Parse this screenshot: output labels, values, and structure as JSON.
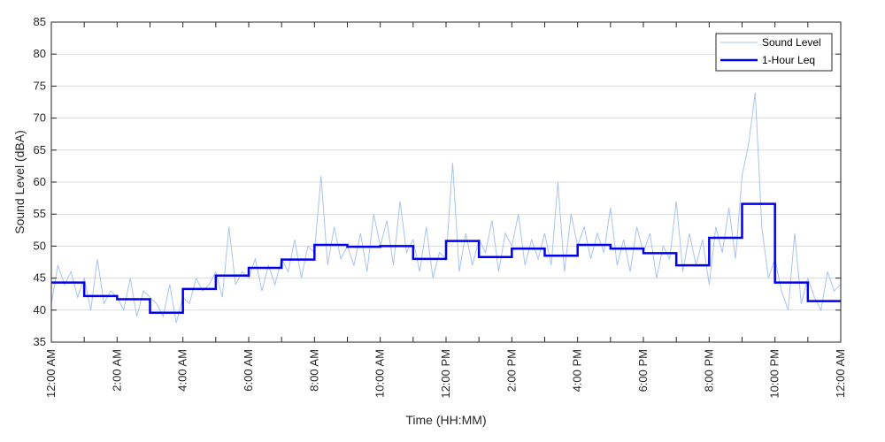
{
  "chart_data": {
    "type": "line",
    "title": "",
    "xlabel": "Time (HH:MM)",
    "ylabel": "Sound Level (dBA)",
    "xlim_hours": [
      0,
      24
    ],
    "ylim": [
      35,
      85
    ],
    "y_ticks": [
      35,
      40,
      45,
      50,
      55,
      60,
      65,
      70,
      75,
      80,
      85
    ],
    "x_ticks": [
      {
        "hour": 0,
        "label": "12:00 AM"
      },
      {
        "hour": 2,
        "label": "2:00 AM"
      },
      {
        "hour": 4,
        "label": "4:00 AM"
      },
      {
        "hour": 6,
        "label": "6:00 AM"
      },
      {
        "hour": 8,
        "label": "8:00 AM"
      },
      {
        "hour": 10,
        "label": "10:00 AM"
      },
      {
        "hour": 12,
        "label": "12:00 PM"
      },
      {
        "hour": 14,
        "label": "2:00 PM"
      },
      {
        "hour": 16,
        "label": "4:00 PM"
      },
      {
        "hour": 18,
        "label": "6:00 PM"
      },
      {
        "hour": 20,
        "label": "8:00 PM"
      },
      {
        "hour": 22,
        "label": "10:00 PM"
      },
      {
        "hour": 24,
        "label": "12:00 AM"
      }
    ],
    "grid": "horizontal",
    "legend_position": "top-right",
    "series": [
      {
        "name": "Sound Level",
        "color": "#a8c4f0",
        "style": "thin-line",
        "x_hours": [
          0,
          0.2,
          0.4,
          0.6,
          0.8,
          1,
          1.2,
          1.4,
          1.6,
          1.8,
          2,
          2.2,
          2.4,
          2.6,
          2.8,
          3,
          3.2,
          3.4,
          3.6,
          3.8,
          4,
          4.2,
          4.4,
          4.6,
          4.8,
          5,
          5.2,
          5.4,
          5.6,
          5.8,
          6,
          6.2,
          6.4,
          6.6,
          6.8,
          7,
          7.2,
          7.4,
          7.6,
          7.8,
          8,
          8.2,
          8.4,
          8.6,
          8.8,
          9,
          9.2,
          9.4,
          9.6,
          9.8,
          10,
          10.2,
          10.4,
          10.6,
          10.8,
          11,
          11.2,
          11.4,
          11.6,
          11.8,
          12,
          12.2,
          12.4,
          12.6,
          12.8,
          13,
          13.2,
          13.4,
          13.6,
          13.8,
          14,
          14.2,
          14.4,
          14.6,
          14.8,
          15,
          15.2,
          15.4,
          15.6,
          15.8,
          16,
          16.2,
          16.4,
          16.6,
          16.8,
          17,
          17.2,
          17.4,
          17.6,
          17.8,
          18,
          18.2,
          18.4,
          18.6,
          18.8,
          19,
          19.2,
          19.4,
          19.6,
          19.8,
          20,
          20.2,
          20.4,
          20.6,
          20.8,
          21,
          21.2,
          21.4,
          21.6,
          21.8,
          22,
          22.2,
          22.4,
          22.6,
          22.8,
          23,
          23.2,
          23.4,
          23.6,
          23.8,
          24
        ],
        "values": [
          41,
          47,
          44,
          46,
          42,
          45,
          40,
          48,
          41,
          43,
          42,
          40,
          45,
          39,
          43,
          42,
          41,
          39,
          44,
          38,
          42,
          41,
          45,
          43,
          44,
          46,
          42,
          53,
          44,
          46,
          45,
          48,
          43,
          47,
          44,
          48,
          46,
          51,
          45,
          50,
          49,
          61,
          47,
          53,
          48,
          50,
          47,
          52,
          46,
          55,
          50,
          54,
          47,
          57,
          49,
          51,
          46,
          53,
          45,
          49,
          48,
          63,
          46,
          52,
          47,
          51,
          49,
          54,
          46,
          52,
          50,
          55,
          47,
          51,
          48,
          52,
          47,
          60,
          46,
          55,
          50,
          53,
          48,
          52,
          49,
          56,
          47,
          51,
          46,
          53,
          49,
          52,
          45,
          50,
          48,
          57,
          46,
          52,
          47,
          51,
          44,
          53,
          49,
          56,
          48,
          61,
          66,
          74,
          53,
          45,
          48,
          43,
          40,
          52,
          41,
          45,
          42,
          40,
          46,
          43,
          44
        ]
      },
      {
        "name": "1-Hour Leq",
        "color": "#0000ee",
        "style": "step",
        "hour_start": [
          0,
          1,
          2,
          3,
          4,
          5,
          6,
          7,
          8,
          9,
          10,
          11,
          12,
          13,
          14,
          15,
          16,
          17,
          18,
          19,
          20,
          21,
          22,
          23
        ],
        "values": [
          44.3,
          42.2,
          41.7,
          39.6,
          43.3,
          45.4,
          46.6,
          47.9,
          50.2,
          49.9,
          50.0,
          48.0,
          50.8,
          48.3,
          49.6,
          48.5,
          50.2,
          49.6,
          48.9,
          47.0,
          51.3,
          56.6,
          44.3,
          41.4
        ]
      }
    ]
  }
}
